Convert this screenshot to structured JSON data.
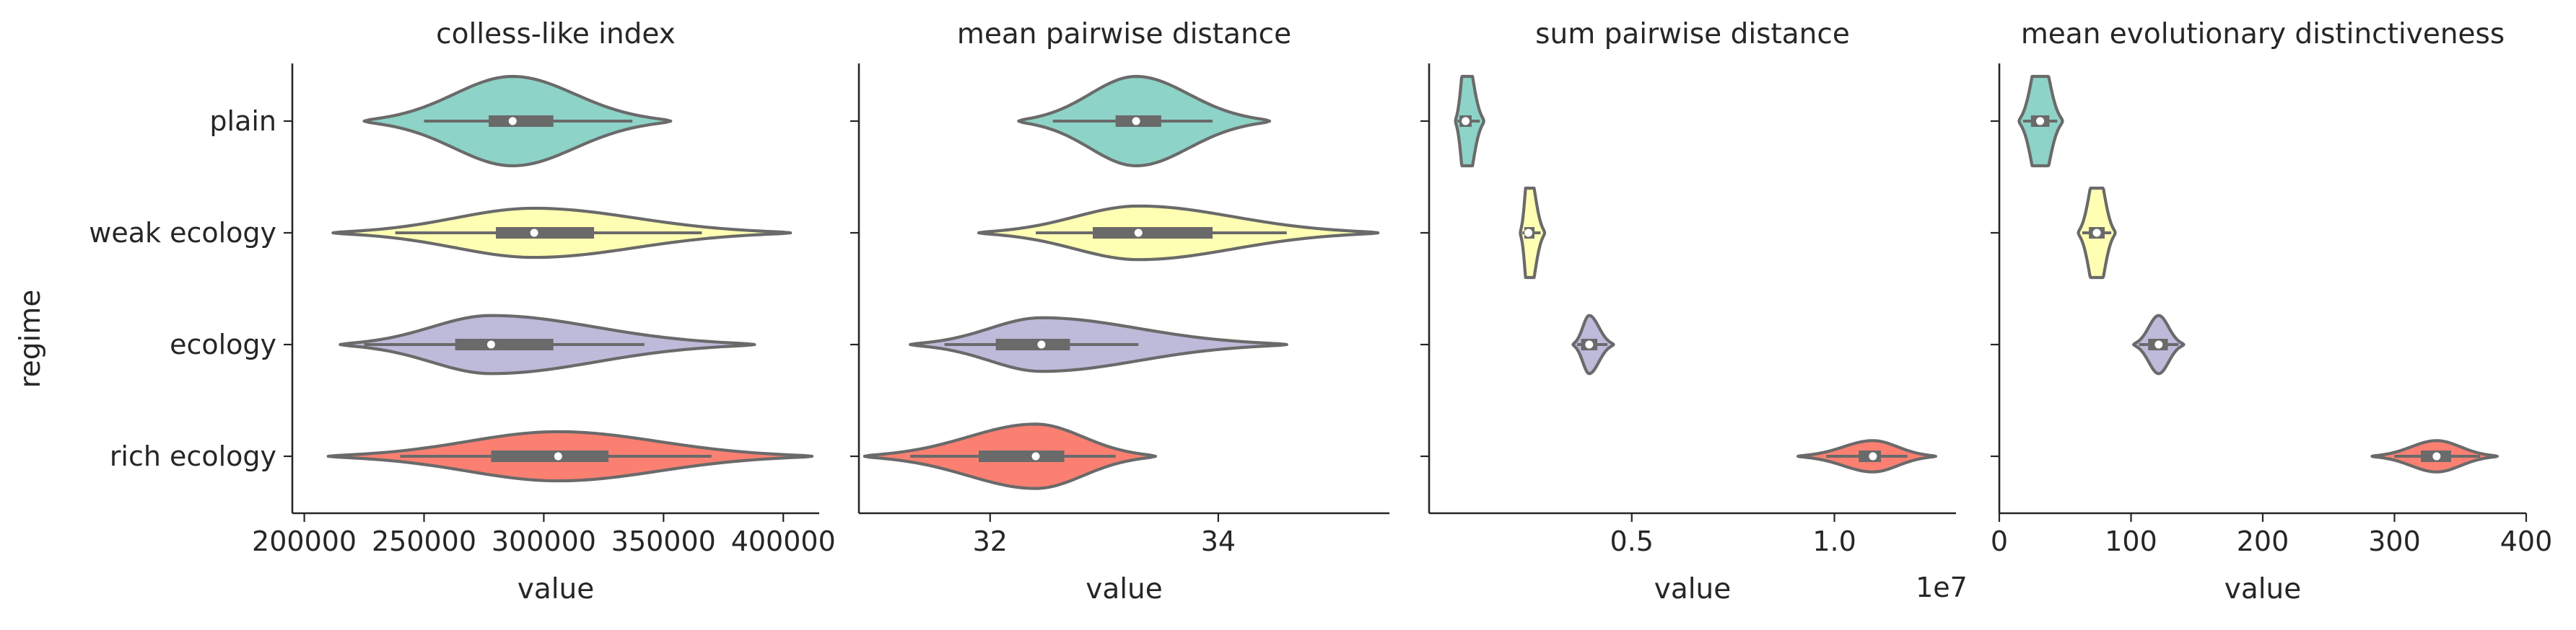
{
  "ylabel": "regime",
  "categories": [
    "plain",
    "weak ecology",
    "ecology",
    "rich ecology"
  ],
  "colors": [
    "#8dd3c7",
    "#ffffb3",
    "#bebada",
    "#fb8072"
  ],
  "stroke_color": "#6a6a6a",
  "chart_data": [
    {
      "type": "violin",
      "title": "colless-like index",
      "xlabel": "value",
      "xlim": [
        195000,
        415000
      ],
      "xticks": [
        200000,
        250000,
        300000,
        350000,
        400000
      ],
      "xtick_labels": [
        "200000",
        "250000",
        "300000",
        "350000",
        "400000"
      ],
      "offset_text": "",
      "series": [
        {
          "name": "plain",
          "min": 225000,
          "q1": 277000,
          "median": 287000,
          "q3": 304000,
          "max": 353000,
          "whisker_low": 250000,
          "whisker_high": 337000,
          "width": 1.0
        },
        {
          "name": "weak ecology",
          "min": 212000,
          "q1": 280000,
          "median": 296000,
          "q3": 321000,
          "max": 403000,
          "whisker_low": 238000,
          "whisker_high": 366000,
          "width": 0.55
        },
        {
          "name": "ecology",
          "min": 215000,
          "q1": 263000,
          "median": 278000,
          "q3": 304000,
          "max": 388000,
          "whisker_low": 225000,
          "whisker_high": 342000,
          "width": 0.65
        },
        {
          "name": "rich ecology",
          "min": 210000,
          "q1": 278000,
          "median": 306000,
          "q3": 327000,
          "max": 412000,
          "whisker_low": 240000,
          "whisker_high": 370000,
          "width": 0.55
        }
      ]
    },
    {
      "type": "violin",
      "title": "mean pairwise distance",
      "xlabel": "value",
      "xlim": [
        30.85,
        35.5
      ],
      "xticks": [
        32,
        34
      ],
      "xtick_labels": [
        "32",
        "34"
      ],
      "offset_text": "",
      "series": [
        {
          "name": "plain",
          "min": 32.25,
          "q1": 33.1,
          "median": 33.28,
          "q3": 33.5,
          "max": 34.45,
          "whisker_low": 32.55,
          "whisker_high": 33.95,
          "width": 1.0
        },
        {
          "name": "weak ecology",
          "min": 31.9,
          "q1": 32.9,
          "median": 33.3,
          "q3": 33.95,
          "max": 35.4,
          "whisker_low": 32.4,
          "whisker_high": 34.6,
          "width": 0.6
        },
        {
          "name": "ecology",
          "min": 31.3,
          "q1": 32.05,
          "median": 32.45,
          "q3": 32.7,
          "max": 34.6,
          "whisker_low": 31.6,
          "whisker_high": 33.3,
          "width": 0.6
        },
        {
          "name": "rich ecology",
          "min": 30.9,
          "q1": 31.9,
          "median": 32.4,
          "q3": 32.65,
          "max": 33.45,
          "whisker_low": 31.3,
          "whisker_high": 33.1,
          "width": 0.72
        }
      ]
    },
    {
      "type": "violin",
      "title": "sum pairwise distance",
      "xlabel": "value",
      "xlim": [
        0,
        13000000
      ],
      "xticks": [
        5000000,
        10000000
      ],
      "xtick_labels": [
        "0.5",
        "1.0"
      ],
      "offset_text": "1e7",
      "series": [
        {
          "name": "plain",
          "min": 650000,
          "q1": 750000,
          "median": 900000,
          "q3": 1050000,
          "max": 1350000,
          "whisker_low": 700000,
          "whisker_high": 1250000,
          "width": 1.6
        },
        {
          "name": "weak ecology",
          "min": 2250000,
          "q1": 2350000,
          "median": 2450000,
          "q3": 2600000,
          "max": 2850000,
          "whisker_low": 2300000,
          "whisker_high": 2750000,
          "width": 1.5
        },
        {
          "name": "ecology",
          "min": 3550000,
          "q1": 3750000,
          "median": 3950000,
          "q3": 4150000,
          "max": 4550000,
          "whisker_low": 3650000,
          "whisker_high": 4400000,
          "width": 0.65
        },
        {
          "name": "rich ecology",
          "min": 9100000,
          "q1": 10600000,
          "median": 10950000,
          "q3": 11150000,
          "max": 12500000,
          "whisker_low": 9800000,
          "whisker_high": 11800000,
          "width": 0.35
        }
      ]
    },
    {
      "type": "violin",
      "title": "mean evolutionary distinctiveness",
      "xlabel": "value",
      "xlim": [
        0,
        400
      ],
      "xticks": [
        0,
        100,
        200,
        300,
        400
      ],
      "xtick_labels": [
        "0",
        "100",
        "200",
        "300",
        "400"
      ],
      "offset_text": "",
      "series": [
        {
          "name": "plain",
          "min": 15,
          "q1": 24,
          "median": 31,
          "q3": 38,
          "max": 48,
          "whisker_low": 18,
          "whisker_high": 44,
          "width": 1.6
        },
        {
          "name": "weak ecology",
          "min": 60,
          "q1": 68,
          "median": 74,
          "q3": 80,
          "max": 88,
          "whisker_low": 63,
          "whisker_high": 85,
          "width": 1.5
        },
        {
          "name": "ecology",
          "min": 102,
          "q1": 113,
          "median": 121,
          "q3": 128,
          "max": 140,
          "whisker_low": 106,
          "whisker_high": 136,
          "width": 0.65
        },
        {
          "name": "rich ecology",
          "min": 283,
          "q1": 320,
          "median": 332,
          "q3": 343,
          "max": 378,
          "whisker_low": 300,
          "whisker_high": 365,
          "width": 0.35
        }
      ]
    }
  ]
}
